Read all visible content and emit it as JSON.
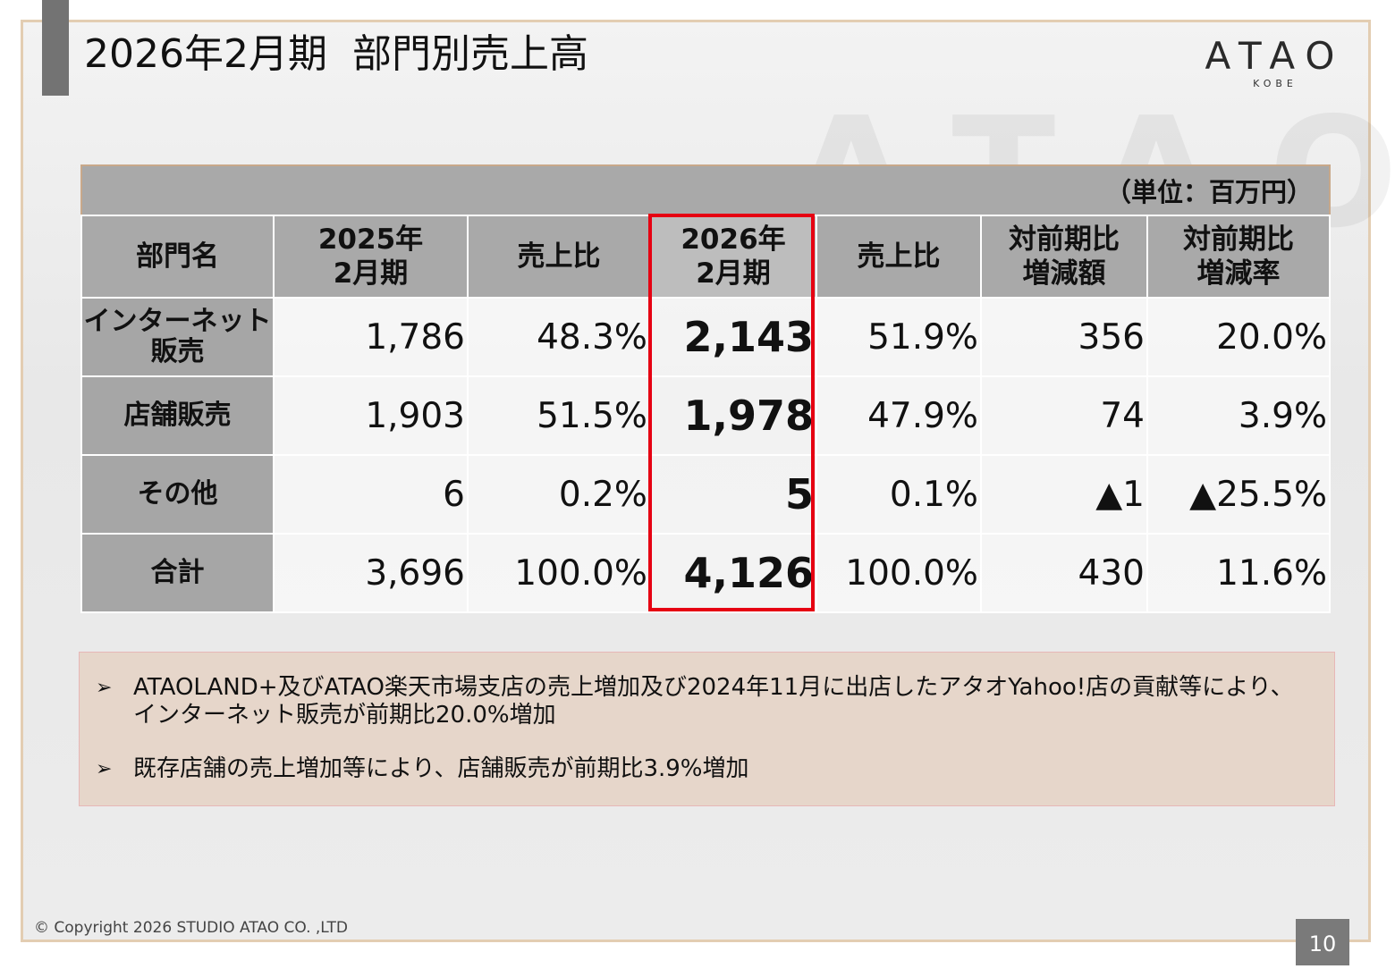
{
  "slide": {
    "title": "2026年2月期  部門別売上高",
    "page_number": "10",
    "copyright": "© Copyright 2026 STUDIO ATAO CO. ,LTD"
  },
  "logo": {
    "main": "ATAO",
    "sub": "KOBE"
  },
  "table": {
    "unit": "（単位：百万円）",
    "headers": [
      {
        "line1": "部門名",
        "line2": ""
      },
      {
        "line1": "2025年",
        "line2": "2月期"
      },
      {
        "line1": "売上比",
        "line2": ""
      },
      {
        "line1": "2026年",
        "line2": "2月期"
      },
      {
        "line1": "売上比",
        "line2": ""
      },
      {
        "line1": "対前期比",
        "line2": "増減額"
      },
      {
        "line1": "対前期比",
        "line2": "増減率"
      }
    ],
    "rows": [
      {
        "dept_line1": "インターネット",
        "dept_line2": "販売",
        "fy2025": "1,786",
        "ratio2025": "48.3%",
        "fy2026": "2,143",
        "ratio2026": "51.9%",
        "change": "356",
        "rate": "20.0%"
      },
      {
        "dept_line1": "店舗販売",
        "dept_line2": "",
        "fy2025": "1,903",
        "ratio2025": "51.5%",
        "fy2026": "1,978",
        "ratio2026": "47.9%",
        "change": "74",
        "rate": "3.9%"
      },
      {
        "dept_line1": "その他",
        "dept_line2": "",
        "fy2025": "6",
        "ratio2025": "0.2%",
        "fy2026": "5",
        "ratio2026": "0.1%",
        "change": "▲1",
        "rate": "▲25.5%"
      },
      {
        "dept_line1": "合計",
        "dept_line2": "",
        "fy2025": "3,696",
        "ratio2025": "100.0%",
        "fy2026": "4,126",
        "ratio2026": "100.0%",
        "change": "430",
        "rate": "11.6%"
      }
    ],
    "highlight_color": "#e60012"
  },
  "notes": {
    "bullet": "➢",
    "items": [
      "ATAOLAND+及びATAO楽天市場支店の売上増加及び2024年11月に出店したアタオYahoo!店の貢献等により、インターネット販売が前期比20.0%増加",
      "既存店舗の売上増加等により、店舗販売が前期比3.9%増加"
    ]
  },
  "colors": {
    "frame_border": "#e3cdb2",
    "header_gray": "#a9a9a9",
    "notes_bg": "#e6d6ca",
    "page_badge": "#7a7a7a"
  }
}
